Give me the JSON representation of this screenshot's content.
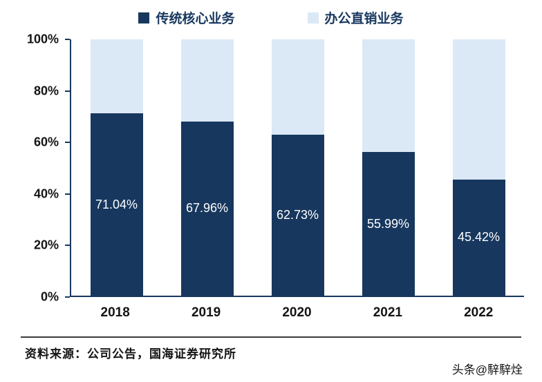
{
  "chart_data": {
    "type": "bar",
    "stacked": true,
    "percent_stacked": true,
    "title": "",
    "xlabel": "",
    "ylabel": "",
    "ylim": [
      0,
      100
    ],
    "grid": false,
    "legend_position": "top",
    "categories": [
      "2018",
      "2019",
      "2020",
      "2021",
      "2022"
    ],
    "yticks": [
      "100%",
      "80%",
      "60%",
      "40%",
      "20%",
      "0%"
    ],
    "series": [
      {
        "name": "传统核心业务",
        "color": "#17375e",
        "values": [
          71.04,
          67.96,
          62.73,
          55.99,
          45.42
        ]
      },
      {
        "name": "办公直销业务",
        "color": "#dbe9f6",
        "values": [
          28.96,
          32.04,
          37.27,
          44.01,
          54.58
        ]
      }
    ],
    "bar_labels": [
      "71.04%",
      "67.96%",
      "62.73%",
      "55.99%",
      "45.42%"
    ]
  },
  "footer": {
    "source": "资料来源：公司公告，国海证券研究所",
    "watermark": "头条@騂騂烇"
  }
}
